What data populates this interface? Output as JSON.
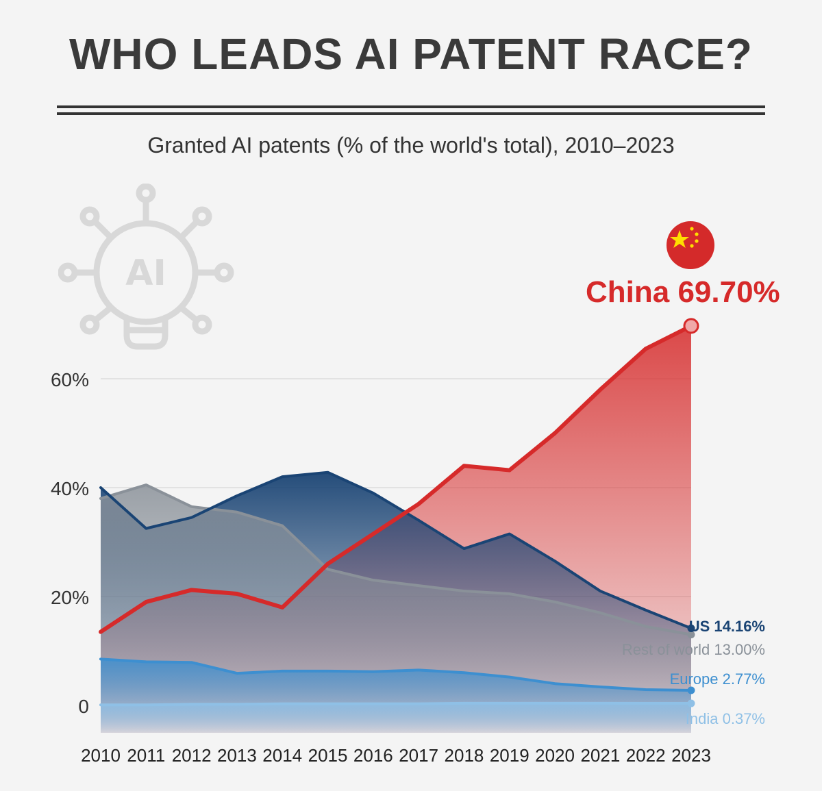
{
  "title": "WHO LEADS AI PATENT RACE?",
  "subtitle": "Granted AI patents (% of the world's total), 2010–2023",
  "icons": {
    "logo": "ai-lightbulb-icon",
    "flag": "china-flag-icon"
  },
  "logo_text": "AI",
  "colors": {
    "china": "#d62a2a",
    "us": "#1a4474",
    "rest": "#8a9199",
    "europe": "#3d8fd0",
    "india": "#8fc0e6",
    "background": "#f4f4f4"
  },
  "chart_data": {
    "type": "area",
    "title": "Granted AI patents (% of the world's total), 2010–2023",
    "xlabel": "",
    "ylabel": "",
    "categories": [
      "2010",
      "2011",
      "2012",
      "2013",
      "2014",
      "2015",
      "2016",
      "2017",
      "2018",
      "2019",
      "2020",
      "2021",
      "2022",
      "2023"
    ],
    "y_ticks": [
      0,
      20,
      40,
      60
    ],
    "y_tick_labels": [
      "0",
      "20%",
      "40%",
      "60%"
    ],
    "ylim": [
      -5,
      68
    ],
    "series": [
      {
        "name": "Rest of world",
        "key": "rest",
        "end_label": "Rest of world 13.00%",
        "values": [
          38.0,
          40.5,
          36.5,
          35.5,
          33.0,
          25.0,
          23.0,
          22.0,
          21.0,
          20.5,
          19.0,
          17.0,
          14.5,
          13.0
        ]
      },
      {
        "name": "US",
        "key": "us",
        "end_label": "US 14.16%",
        "values": [
          40.0,
          32.5,
          34.5,
          38.5,
          42.0,
          42.8,
          39.0,
          34.0,
          28.8,
          31.5,
          26.5,
          21.0,
          17.5,
          14.16
        ]
      },
      {
        "name": "Europe",
        "key": "europe",
        "end_label": "Europe 2.77%",
        "values": [
          8.5,
          8.0,
          7.9,
          5.9,
          6.3,
          6.3,
          6.2,
          6.5,
          6.0,
          5.2,
          4.0,
          3.4,
          2.9,
          2.77
        ]
      },
      {
        "name": "India",
        "key": "india",
        "end_label": "India 0.37%",
        "values": [
          0.1,
          0.1,
          0.2,
          0.2,
          0.3,
          0.3,
          0.3,
          0.3,
          0.4,
          0.4,
          0.4,
          0.4,
          0.37,
          0.37
        ]
      },
      {
        "name": "China",
        "key": "china",
        "end_label": "China 69.70%",
        "values": [
          13.5,
          19.0,
          21.2,
          20.5,
          18.0,
          26.0,
          31.5,
          37.0,
          44.0,
          43.2,
          50.0,
          58.0,
          65.5,
          69.7
        ]
      }
    ]
  }
}
